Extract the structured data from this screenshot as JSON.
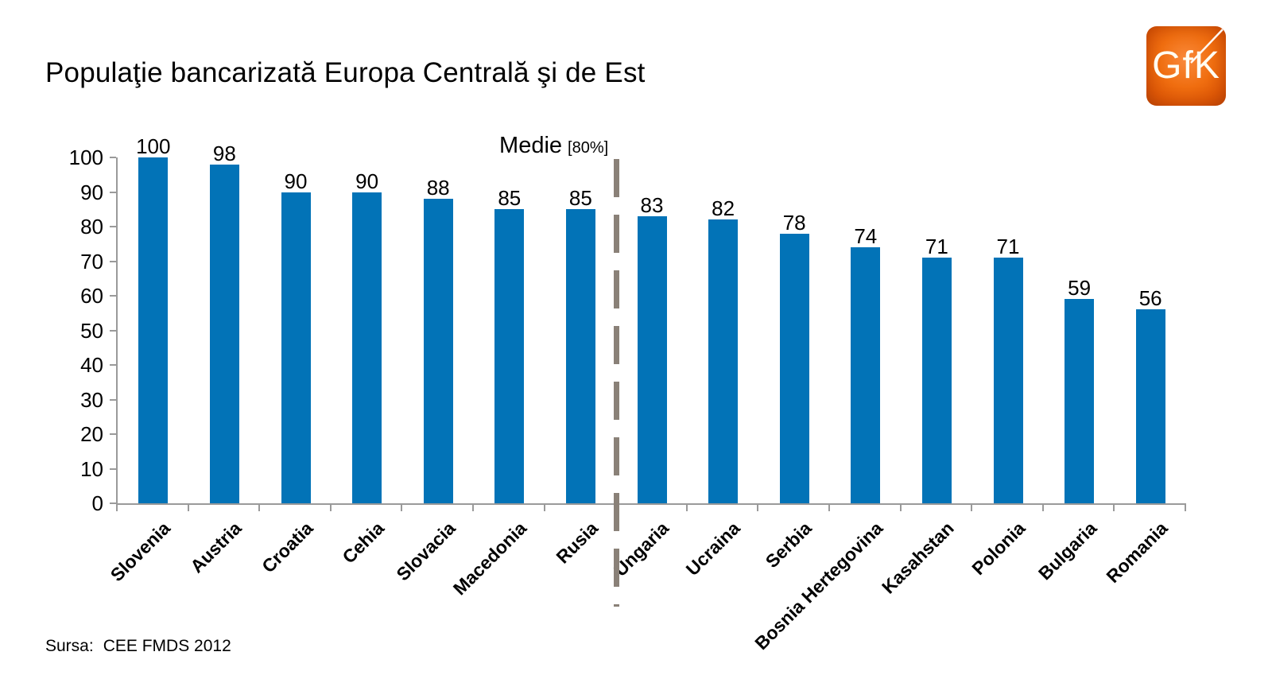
{
  "title": "Populaţie bancarizată Europa Centrală şi de Est",
  "logo": {
    "text": "GfK",
    "bg_color": "#EE6A0F"
  },
  "source": {
    "label": "Sursa:",
    "value": "CEE FMDS 2012"
  },
  "chart_data": {
    "type": "bar",
    "title": "Populaţie bancarizată Europa Centrală şi de Est",
    "categories": [
      "Slovenia",
      "Austria",
      "Croatia",
      "Cehia",
      "Slovacia",
      "Macedonia",
      "Rusia",
      "Ungaria",
      "Ucraina",
      "Serbia",
      "Bosnia Hertegovina",
      "Kasahstan",
      "Polonia",
      "Bulgaria",
      "Romania"
    ],
    "values": [
      100,
      98,
      90,
      90,
      88,
      85,
      85,
      83,
      82,
      78,
      74,
      71,
      71,
      59,
      56
    ],
    "xlabel": "",
    "ylabel": "",
    "ylim": [
      0,
      100
    ],
    "yticks": [
      0,
      10,
      20,
      30,
      40,
      50,
      60,
      70,
      80,
      90,
      100
    ],
    "grid": false,
    "legend": null,
    "bar_color": "#0273B7",
    "axis_color": "#9A9A9A",
    "label_color": "#000000",
    "average_divider": {
      "label": "Medie",
      "sublabel": "[80%]",
      "value": 80,
      "after_category": "Rusia",
      "boundary_index": 7,
      "line_color": "#8A8178"
    }
  }
}
